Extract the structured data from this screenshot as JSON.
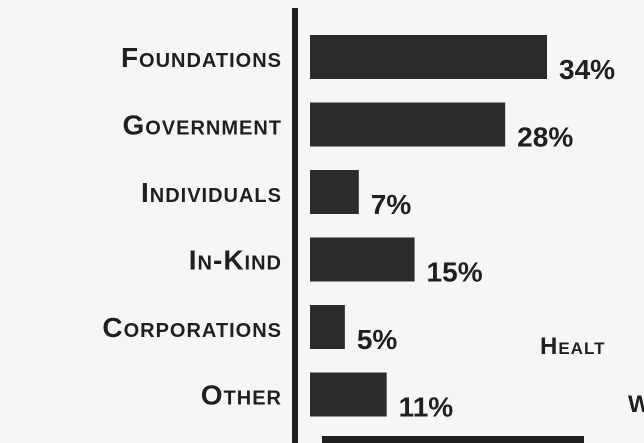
{
  "chart_data": {
    "type": "bar",
    "orientation": "horizontal",
    "categories": [
      "Foundations",
      "Government",
      "Individuals",
      "In-Kind",
      "Corporations",
      "Other"
    ],
    "values": [
      34,
      28,
      7,
      15,
      5,
      11
    ],
    "value_labels": [
      "34%",
      "28%",
      "7%",
      "15%",
      "5%",
      "11%"
    ],
    "unit": "%",
    "bar_color": "#2b2b2b",
    "axis_color": "#1f1f1f",
    "xlim": [
      0,
      34
    ]
  },
  "side_text": {
    "line1": "Healt",
    "line2": "W"
  }
}
